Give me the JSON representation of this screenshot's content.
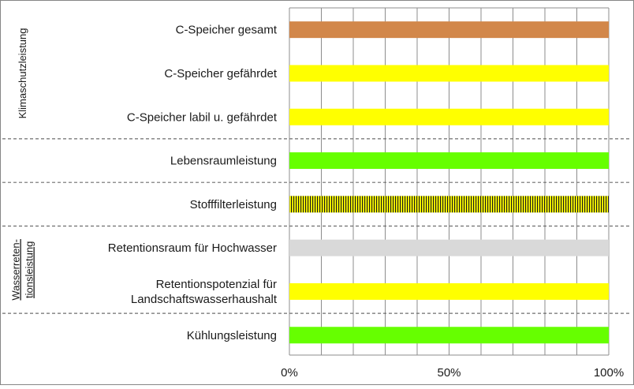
{
  "chart_data": {
    "type": "bar",
    "orientation": "horizontal",
    "categories": [
      "C-Speicher gesamt",
      "C-Speicher gefährdet",
      "C-Speicher labil u. gefährdet",
      "Lebensraumleistung",
      "Stofffilterleistung",
      "Retentionsraum für Hochwasser",
      "Retentionspotenzial für Landschaftswasserhaushalt",
      "Kühlungsleistung"
    ],
    "category_lines": [
      [
        "C-Speicher gesamt"
      ],
      [
        "C-Speicher gefährdet"
      ],
      [
        "C-Speicher labil u. gefährdet"
      ],
      [
        "Lebensraumleistung"
      ],
      [
        "Stofffilterleistung"
      ],
      [
        "Retentionsraum für Hochwasser"
      ],
      [
        "Retentionspotenzial für",
        "Landschaftswasserhaushalt"
      ],
      [
        "Kühlungsleistung"
      ]
    ],
    "values": [
      100,
      100,
      100,
      100,
      100,
      100,
      100,
      100
    ],
    "colors": [
      "#D2874A",
      "#FFFF00",
      "#FFFF00",
      "#66FF00",
      "#FFFF00",
      "#D9D9D9",
      "#FFFF00",
      "#66FF00"
    ],
    "patterns": [
      "solid",
      "solid",
      "solid",
      "solid",
      "vertical-stripes",
      "solid",
      "solid",
      "solid"
    ],
    "xlim": [
      0,
      100
    ],
    "xtick_values": [
      0,
      50,
      100
    ],
    "xtick_labels": [
      "0%",
      "50%",
      "100%"
    ],
    "minor_grid_step": 10,
    "grid": true,
    "groups": [
      {
        "label_lines": [
          "Klimaschutzleistung"
        ],
        "rows": [
          0,
          2
        ]
      },
      {
        "label_lines": [
          "Wasserreten-",
          "tionsleistung"
        ],
        "rows": [
          5,
          6
        ]
      }
    ],
    "group_separators_after_rows": [
      2,
      3,
      4,
      6
    ]
  }
}
